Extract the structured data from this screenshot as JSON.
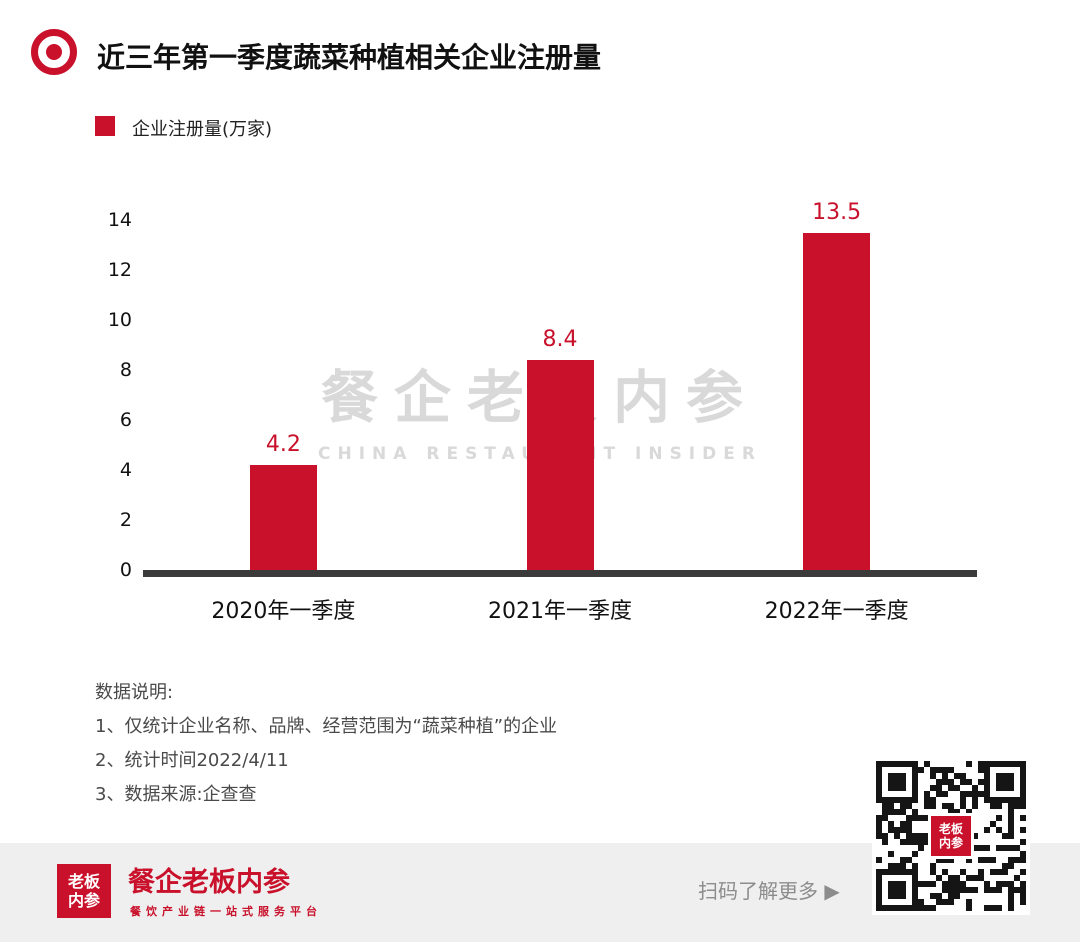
{
  "colors": {
    "accent": "#C9112B",
    "axis": "#3a3a3a",
    "watermark": "#d9d9d9",
    "footer_bg": "#efefef",
    "note_text": "#4a4a4a"
  },
  "header": {
    "title": "近三年第一季度蔬菜种植相关企业注册量"
  },
  "legend": {
    "label": "企业注册量(万家)"
  },
  "chart_data": {
    "type": "bar",
    "categories": [
      "2020年一季度",
      "2021年一季度",
      "2022年一季度"
    ],
    "values": [
      4.2,
      8.4,
      13.5
    ],
    "title": "近三年第一季度蔬菜种植相关企业注册量",
    "xlabel": "",
    "ylabel": "企业注册量(万家)",
    "ylim": [
      0,
      14
    ],
    "yticks": [
      0,
      2,
      4,
      6,
      8,
      10,
      12,
      14
    ],
    "bar_color": "#C9112B",
    "value_labels": [
      "4.2",
      "8.4",
      "13.5"
    ],
    "grid": false,
    "legend_position": "top-left"
  },
  "watermark": {
    "line1": "餐企老板内参",
    "line2": "CHINA RESTAURANT INSIDER"
  },
  "notes": {
    "heading": "数据说明:",
    "items": [
      "1、仅统计企业名称、品牌、经营范围为“蔬菜种植”的企业",
      "2、统计时间2022/4/11",
      "3、数据来源:企查查"
    ]
  },
  "footer": {
    "logo_text": "老板内参",
    "brand": "餐企老板内参",
    "tagline": "餐饮产业链一站式服务平台",
    "cta": "扫码了解更多 ▶",
    "qr_center_text": "老板内参"
  }
}
